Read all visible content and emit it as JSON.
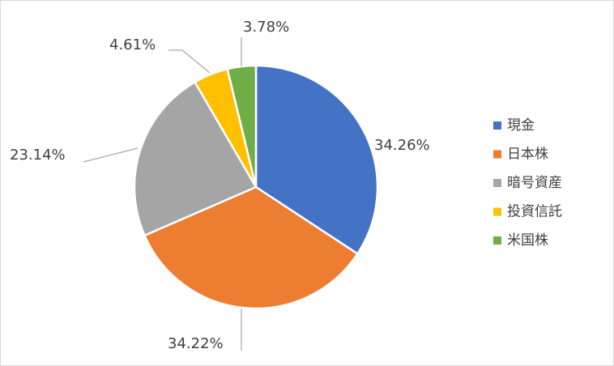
{
  "chart_data": {
    "type": "pie",
    "categories": [
      "現金",
      "日本株",
      "暗号資産",
      "投資信託",
      "米国株"
    ],
    "values": [
      34.26,
      34.22,
      23.14,
      4.61,
      3.78
    ],
    "value_labels": [
      "34.26%",
      "34.22%",
      "23.14%",
      "4.61%",
      "3.78%"
    ],
    "colors": [
      "#4472c4",
      "#ed7d31",
      "#a5a5a5",
      "#ffc000",
      "#70ad47"
    ],
    "legend": "right"
  }
}
